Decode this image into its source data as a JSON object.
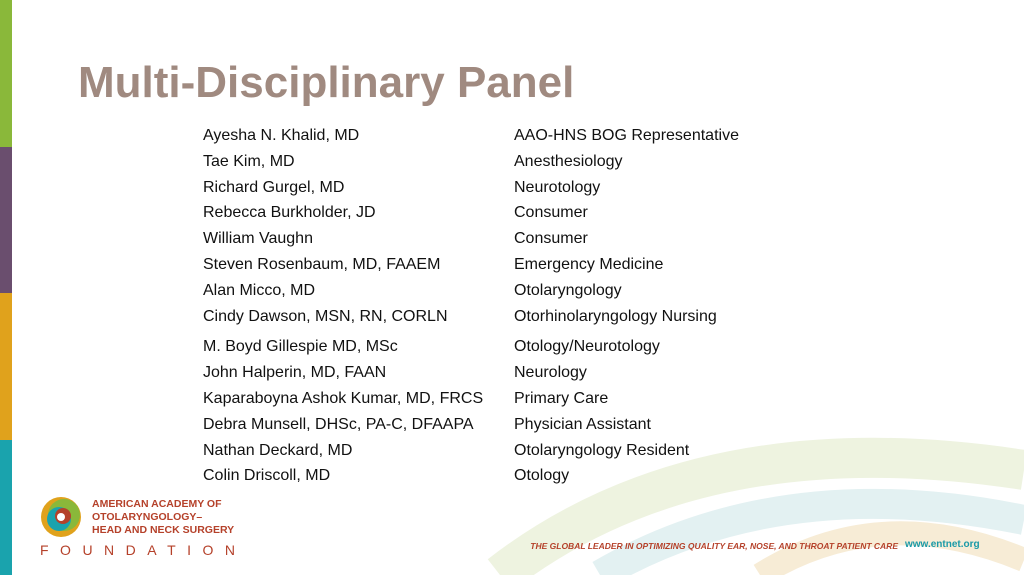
{
  "title": "Multi-Disciplinary Panel",
  "panel": [
    [
      "Ayesha N. Khalid, MD",
      "AAO-HNS BOG Representative"
    ],
    [
      "Tae Kim, MD",
      "Anesthesiology"
    ],
    [
      "Richard Gurgel, MD",
      "Neurotology"
    ],
    [
      "Rebecca Burkholder, JD",
      "Consumer"
    ],
    [
      "William Vaughn",
      "Consumer"
    ],
    [
      "Steven Rosenbaum, MD, FAAEM",
      "Emergency Medicine"
    ],
    [
      "Alan Micco, MD",
      "Otolaryngology"
    ],
    [
      "Cindy Dawson, MSN, RN, CORLN",
      "Otorhinolaryngology Nursing"
    ],
    [
      "M. Boyd Gillespie MD, MSc",
      "Otology/Neurotology"
    ],
    [
      "John Halperin, MD, FAAN",
      "Neurology"
    ],
    [
      "Kaparaboyna Ashok Kumar, MD, FRCS",
      "Primary Care"
    ],
    [
      "Debra Munsell, DHSc, PA-C, DFAAPA",
      "Physician Assistant"
    ],
    [
      "Nathan Deckard, MD",
      "Otolaryngology Resident"
    ],
    [
      "Colin Driscoll, MD",
      "Otology"
    ]
  ],
  "footer": {
    "org_lines": [
      "AMERICAN ACADEMY OF",
      "OTOLARYNGOLOGY–",
      "HEAD AND NECK SURGERY"
    ],
    "foundation": "FOUNDATION",
    "tagline": "THE GLOBAL LEADER IN OPTIMIZING QUALITY EAR, NOSE, AND THROAT PATIENT CARE",
    "url": "www.entnet.org"
  }
}
